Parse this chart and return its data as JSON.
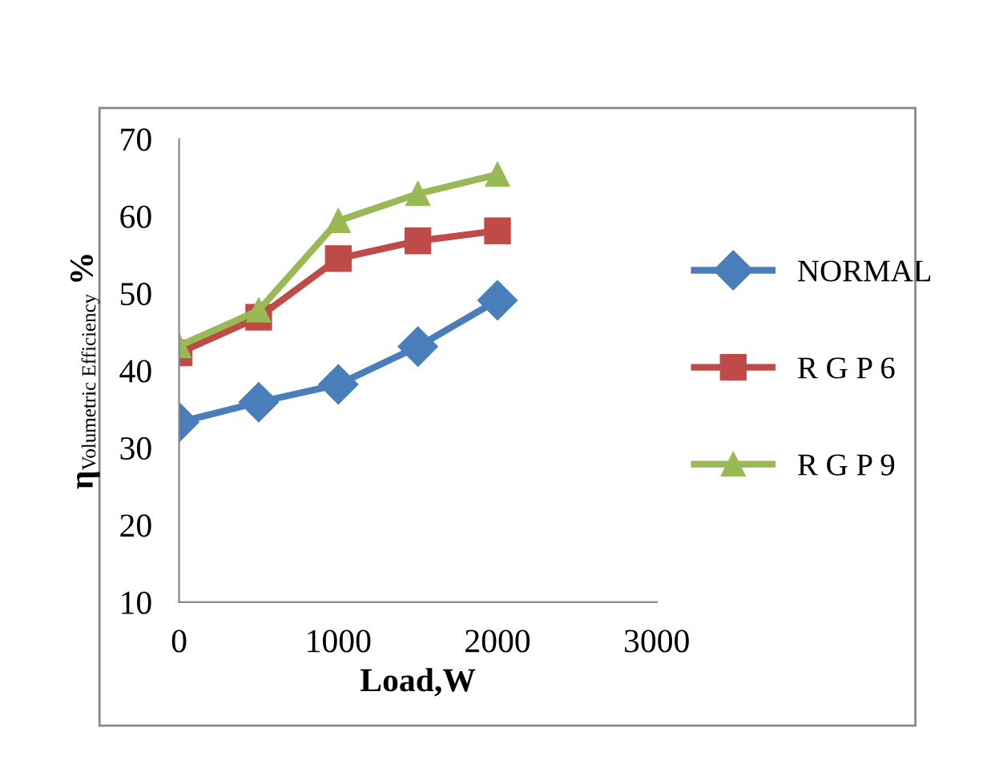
{
  "chart_data": {
    "type": "line",
    "xlabel": "Load,W",
    "ylabel": "η$_{Volumetric Efficiency}$ %",
    "x": [
      0,
      500,
      1000,
      1500,
      2000
    ],
    "series": [
      {
        "name": "NORMAL",
        "color": "#4a7ebb",
        "marker": "diamond",
        "values": [
          33.3,
          35.9,
          38.2,
          43.1,
          49.1
        ]
      },
      {
        "name": "R G P 6",
        "color": "#be4b48",
        "marker": "square",
        "values": [
          42.3,
          46.9,
          54.5,
          56.8,
          58.1
        ]
      },
      {
        "name": "R G P 9",
        "color": "#98b954",
        "marker": "triangle",
        "values": [
          43.2,
          47.8,
          59.4,
          62.9,
          65.4
        ]
      }
    ],
    "xlim": [
      0,
      3000
    ],
    "xticks": [
      0,
      1000,
      2000,
      3000
    ],
    "ylim": [
      10,
      70
    ],
    "yticks": [
      10,
      20,
      30,
      40,
      50,
      60,
      70
    ],
    "grid": false,
    "legend": "right"
  }
}
